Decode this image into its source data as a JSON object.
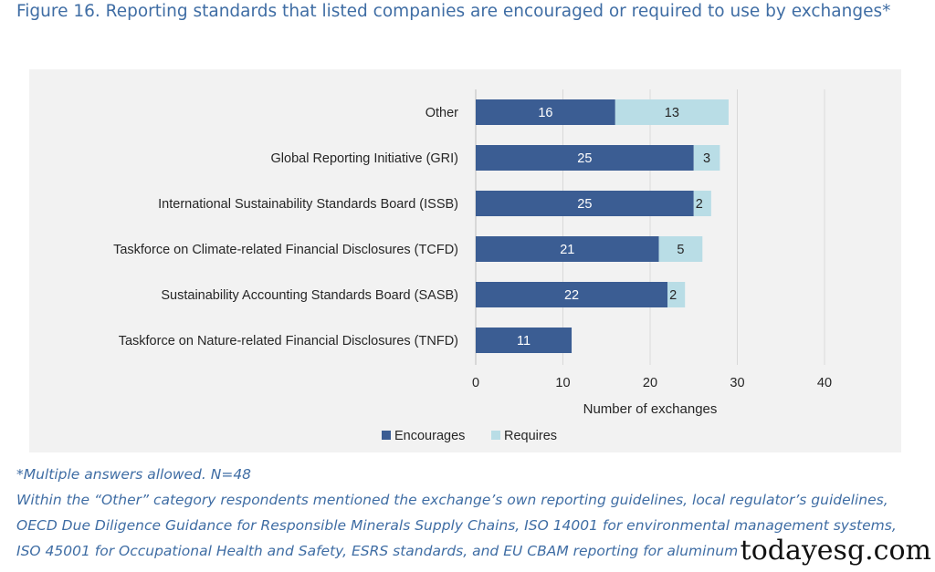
{
  "figure": {
    "title": "Figure 16. Reporting standards that listed companies are encouraged or required to use by exchanges*"
  },
  "colors": {
    "encourages": "#3b5d93",
    "requires": "#b9dde6",
    "gridline": "#d9d9d9",
    "title_text": "#3f6da4",
    "plot_background": "#f2f2f2"
  },
  "chart_data": {
    "type": "bar",
    "orientation": "horizontal",
    "stacked": true,
    "categories": [
      "Other",
      "Global Reporting Initiative (GRI)",
      "International Sustainability Standards Board (ISSB)",
      "Taskforce on Climate-related Financial Disclosures (TCFD)",
      "Sustainability Accounting Standards Board (SASB)",
      "Taskforce on Nature-related Financial Disclosures (TNFD)"
    ],
    "series": [
      {
        "name": "Encourages",
        "values": [
          16,
          25,
          25,
          21,
          22,
          11
        ]
      },
      {
        "name": "Requires",
        "values": [
          13,
          3,
          2,
          5,
          2,
          0
        ]
      }
    ],
    "xlabel": "Number of exchanges",
    "ylabel": "",
    "xlim": [
      0,
      40
    ],
    "xticks": [
      0,
      10,
      20,
      30,
      40
    ],
    "grid": "vertical",
    "legend_position": "bottom",
    "data_labels": true
  },
  "notes": {
    "line1": "*Multiple answers allowed. N=48",
    "line2": "Within the “Other” category respondents mentioned the exchange’s own reporting guidelines, local regulator’s guidelines,",
    "line3": "OECD Due Diligence Guidance for Responsible Minerals Supply Chains, ISO 14001 for environmental management systems,",
    "line4": "ISO 45001 for Occupational Health and Safety, ESRS standards, and EU CBAM reporting for aluminum"
  },
  "watermark": "todayesg.com"
}
